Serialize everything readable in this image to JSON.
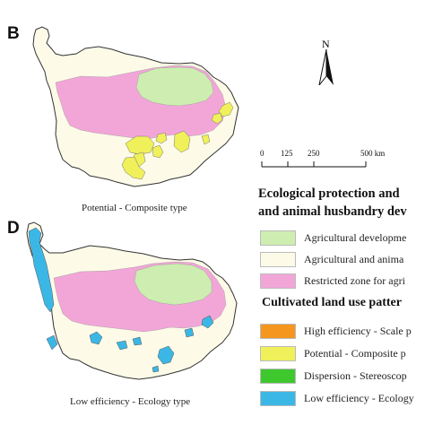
{
  "panels": {
    "top": {
      "letter": "B",
      "caption": "Potential - Composite type"
    },
    "bottom": {
      "letter": "D",
      "caption": "Low efficiency - Ecology type"
    }
  },
  "north_arrow": {
    "label": "N"
  },
  "scale_bar": {
    "ticks": [
      "0",
      "125",
      "250",
      "500 km"
    ]
  },
  "legend": {
    "title_line1": "Ecological protection and",
    "title_line2": "and animal husbandry dev",
    "zones": [
      {
        "label": "Agricultural developme",
        "color": "#cdeeb0"
      },
      {
        "label": "Agricultural and anima",
        "color": "#fdfbe8"
      },
      {
        "label": "Restricted zone for agri",
        "color": "#f2a6d8"
      }
    ],
    "pattern_title": "Cultivated land use patter",
    "patterns": [
      {
        "label": "High efficiency - Scale p",
        "color": "#f5961e"
      },
      {
        "label": "Potential - Composite p",
        "color": "#f0f05a"
      },
      {
        "label": "Dispersion - Stereoscop",
        "color": "#3ec82d"
      },
      {
        "label": "Low efficiency - Ecology",
        "color": "#3bb7e6"
      }
    ]
  },
  "colors": {
    "outline": "#333333",
    "cream": "#fdfbe8",
    "pink": "#f2a6d8",
    "green": "#cdeeb0",
    "yellow": "#f0f05a",
    "cyan": "#3bb7e6"
  }
}
